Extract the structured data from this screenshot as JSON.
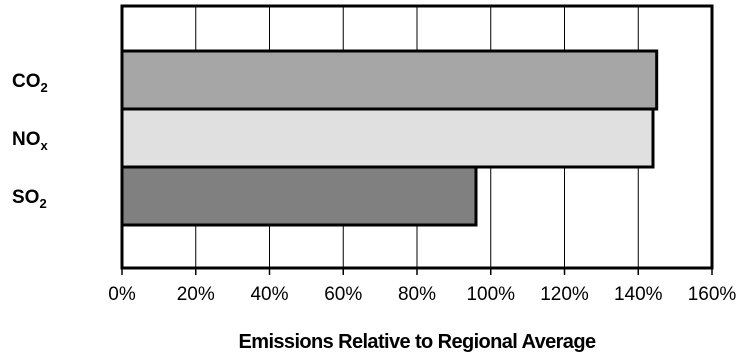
{
  "chart_data": {
    "type": "bar",
    "orientation": "horizontal",
    "title": "",
    "xlabel": "Emissions Relative to Regional Average",
    "ylabel": "",
    "xlim": [
      0,
      160
    ],
    "x_ticks": [
      "0%",
      "20%",
      "40%",
      "60%",
      "80%",
      "100%",
      "120%",
      "140%",
      "160%"
    ],
    "grid": "vertical",
    "categories": [
      {
        "base": "CO",
        "sub": "2"
      },
      {
        "base": "NO",
        "sub": "x"
      },
      {
        "base": "SO",
        "sub": "2"
      }
    ],
    "values": [
      145,
      144,
      96
    ],
    "colors": [
      "#a6a6a6",
      "#e0e0e0",
      "#808080"
    ]
  }
}
